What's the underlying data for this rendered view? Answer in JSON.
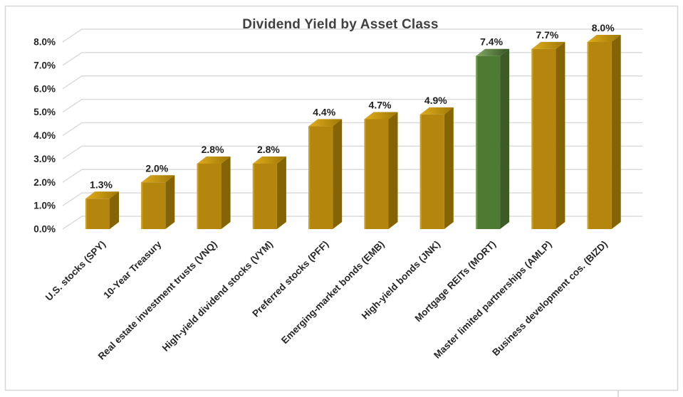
{
  "chart_data": {
    "type": "bar",
    "style": "3d-column",
    "title": "Dividend Yield by Asset Class",
    "categories": [
      "U.S. stocks (SPY)",
      "10-Year Treasury",
      "Real estate investment trusts (VNQ)",
      "High-yield dividend stocks (VYM)",
      "Preferred stocks (PFF)",
      "Emerging-market bonds (EMB)",
      "High-yield bonds (JNK)",
      "Mortgage REITs (MORT)",
      "Master limited partnerships (AMLP)",
      "Business development cos. (BIZD)"
    ],
    "values": [
      1.3,
      2.0,
      2.8,
      2.8,
      4.4,
      4.7,
      4.9,
      7.4,
      7.7,
      8.0
    ],
    "value_labels": [
      "1.3%",
      "2.0%",
      "2.8%",
      "2.8%",
      "4.4%",
      "4.7%",
      "4.9%",
      "7.4%",
      "7.7%",
      "8.0%"
    ],
    "highlight_index": 7,
    "xlabel": "",
    "ylabel": "",
    "ylim": [
      0,
      8
    ],
    "ytick_labels": [
      "0.0%",
      "1.0%",
      "2.0%",
      "3.0%",
      "4.0%",
      "5.0%",
      "6.0%",
      "7.0%",
      "8.0%"
    ],
    "grid": true,
    "legend": false,
    "colors": {
      "bar_front": "#B5860E",
      "bar_top_light": "#DFAC1C",
      "bar_top_dark": "#9E7706",
      "bar_side": "#856406",
      "bar_bevel": "#CF9F1A",
      "highlight_front": "#4E7A31",
      "highlight_top_light": "#82A961",
      "highlight_top_dark": "#375323",
      "highlight_side": "#3C5B26",
      "highlight_bevel": "#7AA258",
      "gridline": "#DBDBDB",
      "axis_text": "#262626",
      "value_text": "#1F1F1F",
      "title_text": "#404040",
      "chart_border": "#D6D6D6",
      "sheet_line": "#D0D0D0"
    }
  }
}
